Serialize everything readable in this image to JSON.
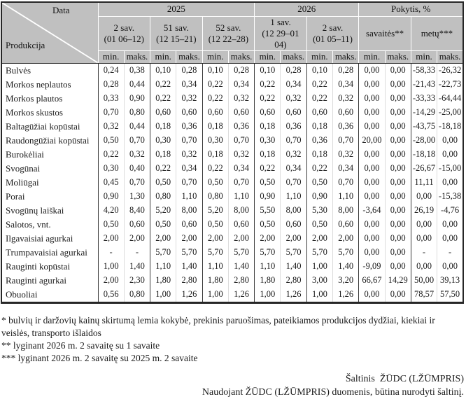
{
  "table": {
    "corner": {
      "top_label": "Data",
      "bottom_label": "Produkcija"
    },
    "year_groups": [
      {
        "label": "2025",
        "span": 6
      },
      {
        "label": "2026",
        "span": 4
      },
      {
        "label": "Pokytis, %",
        "span": 4
      }
    ],
    "weeks": [
      {
        "title": "2 sav.",
        "range": "(01 06–12)"
      },
      {
        "title": "51 sav.",
        "range": "(12 15–21)"
      },
      {
        "title": "52 sav.",
        "range": "(12 22–28)"
      },
      {
        "title": "1 sav.",
        "range": "(12 29–01 04)"
      },
      {
        "title": "2 sav.",
        "range": "(01 05–11)"
      }
    ],
    "pokytis_cols": [
      {
        "label": "savaitės**"
      },
      {
        "label": "metų***"
      }
    ],
    "min_label": "min.",
    "maks_label": "maks.",
    "rows": [
      {
        "name": "Bulvės",
        "values": [
          "0,24",
          "0,38",
          "0,10",
          "0,28",
          "0,10",
          "0,28",
          "0,10",
          "0,28",
          "0,10",
          "0,28",
          "0,00",
          "0,00",
          "-58,33",
          "-26,32"
        ]
      },
      {
        "name": "Morkos neplautos",
        "values": [
          "0,28",
          "0,44",
          "0,22",
          "0,34",
          "0,22",
          "0,34",
          "0,22",
          "0,34",
          "0,22",
          "0,34",
          "0,00",
          "0,00",
          "-21,43",
          "-22,73"
        ]
      },
      {
        "name": "Morkos plautos",
        "values": [
          "0,33",
          "0,90",
          "0,22",
          "0,32",
          "0,22",
          "0,32",
          "0,22",
          "0,32",
          "0,22",
          "0,32",
          "0,00",
          "0,00",
          "-33,33",
          "-64,44"
        ]
      },
      {
        "name": "Morkos skustos",
        "values": [
          "0,70",
          "0,80",
          "0,60",
          "0,60",
          "0,60",
          "0,60",
          "0,60",
          "0,60",
          "0,60",
          "0,60",
          "0,00",
          "0,00",
          "-14,29",
          "-25,00"
        ]
      },
      {
        "name": "Baltagūžiai kopūstai",
        "values": [
          "0,32",
          "0,44",
          "0,18",
          "0,36",
          "0,18",
          "0,36",
          "0,18",
          "0,36",
          "0,18",
          "0,36",
          "0,00",
          "0,00",
          "-43,75",
          "-18,18"
        ]
      },
      {
        "name": "Raudongūžiai kopūstai",
        "values": [
          "0,50",
          "0,70",
          "0,30",
          "0,70",
          "0,30",
          "0,70",
          "0,30",
          "0,70",
          "0,36",
          "0,70",
          "20,00",
          "0,00",
          "-28,00",
          "0,00"
        ]
      },
      {
        "name": "Burokėliai",
        "values": [
          "0,22",
          "0,32",
          "0,18",
          "0,32",
          "0,18",
          "0,32",
          "0,18",
          "0,32",
          "0,18",
          "0,32",
          "0,00",
          "0,00",
          "-18,18",
          "0,00"
        ]
      },
      {
        "name": "Svogūnai",
        "values": [
          "0,30",
          "0,40",
          "0,22",
          "0,34",
          "0,22",
          "0,34",
          "0,22",
          "0,34",
          "0,22",
          "0,34",
          "0,00",
          "0,00",
          "-26,67",
          "-15,00"
        ]
      },
      {
        "name": "Moliūgai",
        "values": [
          "0,45",
          "0,70",
          "0,50",
          "0,70",
          "0,50",
          "0,70",
          "0,50",
          "0,70",
          "0,50",
          "0,70",
          "0,00",
          "0,00",
          "11,11",
          "0,00"
        ]
      },
      {
        "name": "Porai",
        "values": [
          "0,90",
          "1,30",
          "0,80",
          "1,10",
          "0,80",
          "1,10",
          "0,90",
          "1,10",
          "0,90",
          "1,10",
          "0,00",
          "0,00",
          "0,00",
          "-15,38"
        ]
      },
      {
        "name": "Svogūnų laiškai",
        "values": [
          "4,20",
          "8,40",
          "5,20",
          "8,00",
          "5,20",
          "8,00",
          "5,50",
          "8,00",
          "5,30",
          "8,00",
          "-3,64",
          "0,00",
          "26,19",
          "-4,76"
        ]
      },
      {
        "name": "Salotos, vnt.",
        "values": [
          "0,50",
          "0,60",
          "0,50",
          "0,60",
          "0,50",
          "0,60",
          "0,50",
          "0,60",
          "0,50",
          "0,60",
          "0,00",
          "0,00",
          "0,00",
          "0,00"
        ]
      },
      {
        "name": "Ilgavaisiai agurkai",
        "values": [
          "2,00",
          "2,00",
          "2,00",
          "2,00",
          "2,00",
          "2,00",
          "2,00",
          "2,00",
          "2,00",
          "2,00",
          "0,00",
          "0,00",
          "0,00",
          "0,00"
        ]
      },
      {
        "name": "Trumpavaisiai agurkai",
        "values": [
          "-",
          "-",
          "5,70",
          "5,70",
          "5,70",
          "5,70",
          "5,70",
          "5,70",
          "5,70",
          "5,70",
          "0,00",
          "0,00",
          "-",
          "-"
        ]
      },
      {
        "name": "Rauginti kopūstai",
        "values": [
          "1,00",
          "1,40",
          "1,10",
          "1,40",
          "1,10",
          "1,40",
          "1,10",
          "1,40",
          "1,00",
          "1,40",
          "-9,09",
          "0,00",
          "0,00",
          "0,00"
        ]
      },
      {
        "name": "Rauginti agurkai",
        "values": [
          "2,00",
          "2,30",
          "1,80",
          "2,80",
          "1,80",
          "2,80",
          "1,80",
          "2,80",
          "3,00",
          "3,20",
          "66,67",
          "14,29",
          "50,00",
          "39,13"
        ]
      },
      {
        "name": "Obuoliai",
        "values": [
          "0,56",
          "0,80",
          "1,00",
          "1,26",
          "1,00",
          "1,26",
          "1,00",
          "1,26",
          "1,00",
          "1,26",
          "0,00",
          "0,00",
          "78,57",
          "57,50"
        ]
      }
    ]
  },
  "footnotes": [
    "* bulvių ir daržovių kainų skirtumą lemia kokybė, prekinis paruošimas, pateikiamos produkcijos dydžiai, kiekiai ir veislės, transporto išlaidos",
    "** lyginant 2026 m. 2 savaitę su 1 savaite",
    "*** lyginant 2026 m. 2 savaitę su 2025 m. 2 savaite"
  ],
  "source": {
    "line1": "Šaltinis  ŽŪDC (LŽŪMPRIS)",
    "line2": "Naudojant ŽŪDC (LŽŪMPRIS) duomenis, būtina nurodyti šaltinį."
  },
  "colors": {
    "header_bg": "#c0c0c0",
    "header_separator": "#ffffff",
    "group_border": "#3a3a3a",
    "inner_border": "#dcdcdc",
    "outer_border": "#262626",
    "text": "#1a1a1a"
  }
}
